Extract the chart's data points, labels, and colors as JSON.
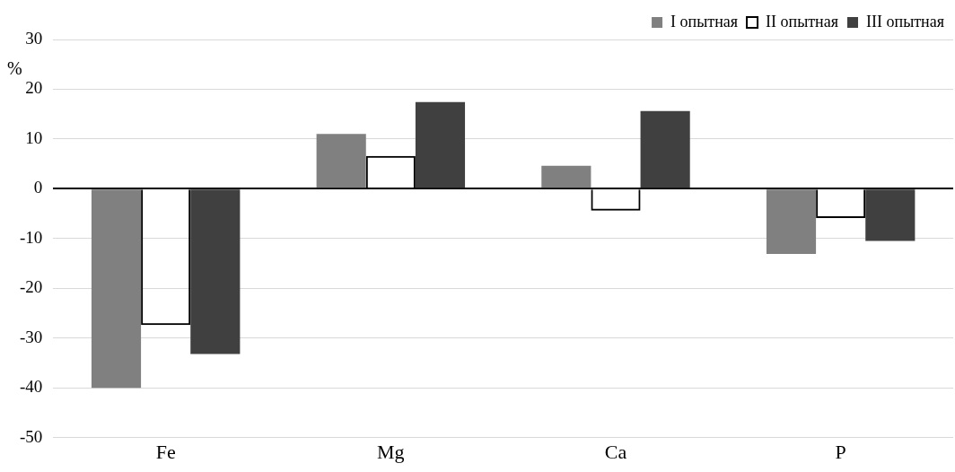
{
  "chart_data": {
    "type": "bar",
    "ylabel": "%",
    "categories": [
      "Fe",
      "Mg",
      "Ca",
      "P"
    ],
    "series": [
      {
        "name": "I опытная",
        "color": "#808080",
        "values": [
          -40,
          11,
          4.6,
          -13.1
        ]
      },
      {
        "name": "II опытная",
        "color": "#000000",
        "values": [
          -27.4,
          6.6,
          -4.4,
          -5.9
        ]
      },
      {
        "name": "III опытная",
        "color": "#404040",
        "values": [
          -33.2,
          17.4,
          15.6,
          -10.5
        ]
      }
    ],
    "ylim": [
      -50,
      30
    ],
    "yticks": [
      -50,
      -40,
      -30,
      -20,
      -10,
      0,
      10,
      20,
      30
    ],
    "grid": "y",
    "legend": "top right"
  }
}
